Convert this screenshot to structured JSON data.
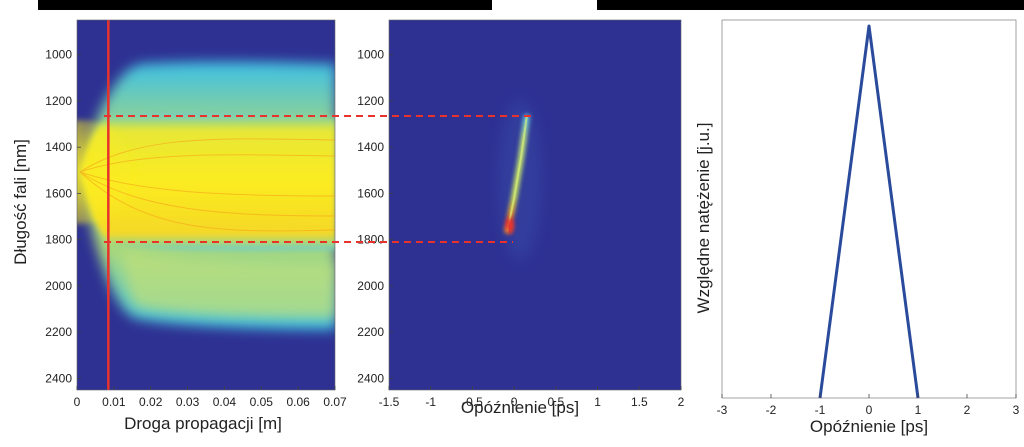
{
  "panels": [
    {
      "type": "heatmap",
      "title": "",
      "xlabel": "Droga propagacji [m]",
      "ylabel": "Długość fali [nm]",
      "xlim": [
        0,
        0.07
      ],
      "ylim": [
        850,
        2450
      ],
      "y_inverted": true,
      "xticks": [
        "0",
        "0.01",
        "0.02",
        "0.03",
        "0.04",
        "0.05",
        "0.06",
        "0.07"
      ],
      "yticks": [
        "1000",
        "1200",
        "1400",
        "1600",
        "1800",
        "2000",
        "2200",
        "2400"
      ],
      "marker_line_x": 0.0085,
      "colors": {
        "background": "#2e3192",
        "marker": "#e8322b"
      }
    },
    {
      "type": "heatmap",
      "title": "",
      "xlabel": "Opóźnienie [ps]",
      "ylabel": "",
      "xlim": [
        -1.5,
        2
      ],
      "ylim": [
        850,
        2450
      ],
      "y_inverted": true,
      "xticks": [
        "-1.5",
        "-1",
        "-0.5",
        "0",
        "0.5",
        "1",
        "1.5",
        "2"
      ],
      "yticks": [
        "1000",
        "1200",
        "1400",
        "1600",
        "1800",
        "2000",
        "2200",
        "2400"
      ],
      "trace": [
        {
          "delay": 0.15,
          "wavelength": 1270
        },
        {
          "delay": 0.08,
          "wavelength": 1450
        },
        {
          "delay": 0.0,
          "wavelength": 1620
        },
        {
          "delay": -0.08,
          "wavelength": 1760
        }
      ]
    },
    {
      "type": "line",
      "title": "",
      "xlabel": "Opóźnienie [ps]",
      "ylabel": "Względne natężenie [j.u.]",
      "xlim": [
        -3,
        3
      ],
      "ylim": [
        0,
        1
      ],
      "xticks": [
        "-3",
        "-2",
        "-1",
        "0",
        "1",
        "2",
        "3"
      ],
      "x": [
        -1,
        -0.5,
        0,
        0.5,
        1
      ],
      "y": [
        0,
        0.5,
        1,
        0.5,
        0
      ],
      "colors": {
        "line": "#2a4a9c"
      }
    }
  ],
  "chart_data": [
    {
      "type": "heatmap",
      "xlabel": "Droga propagacji [m]",
      "ylabel": "Długość fali [nm]",
      "xlim": [
        0,
        0.07
      ],
      "ylim": [
        850,
        2450
      ],
      "y_inverted": true,
      "xticks": [
        0,
        0.01,
        0.02,
        0.03,
        0.04,
        0.05,
        0.06,
        0.07
      ],
      "yticks": [
        1000,
        1200,
        1400,
        1600,
        1800,
        2000,
        2200,
        2400
      ],
      "annotations": {
        "vertical_line_x": 0.0085,
        "dashed_horizontal_lines_nm": [
          1250,
          1800
        ]
      }
    },
    {
      "type": "heatmap",
      "xlabel": "Opóźnienie [ps]",
      "xlim": [
        -1.5,
        2
      ],
      "ylim": [
        850,
        2450
      ],
      "y_inverted": true,
      "xticks": [
        -1.5,
        -1,
        -0.5,
        0,
        0.5,
        1,
        1.5,
        2
      ],
      "yticks": [
        1000,
        1200,
        1400,
        1600,
        1800,
        2000,
        2200,
        2400
      ]
    },
    {
      "type": "line",
      "xlabel": "Opóźnienie [ps]",
      "ylabel": "Względne natężenie [j.u.]",
      "xlim": [
        -3,
        3
      ],
      "ylim": [
        0,
        1
      ],
      "xticks": [
        -3,
        -2,
        -1,
        0,
        1,
        2,
        3
      ],
      "x": [
        -1,
        -0.5,
        0,
        0.5,
        1
      ],
      "y": [
        0,
        0.5,
        1,
        0.5,
        0
      ]
    }
  ]
}
